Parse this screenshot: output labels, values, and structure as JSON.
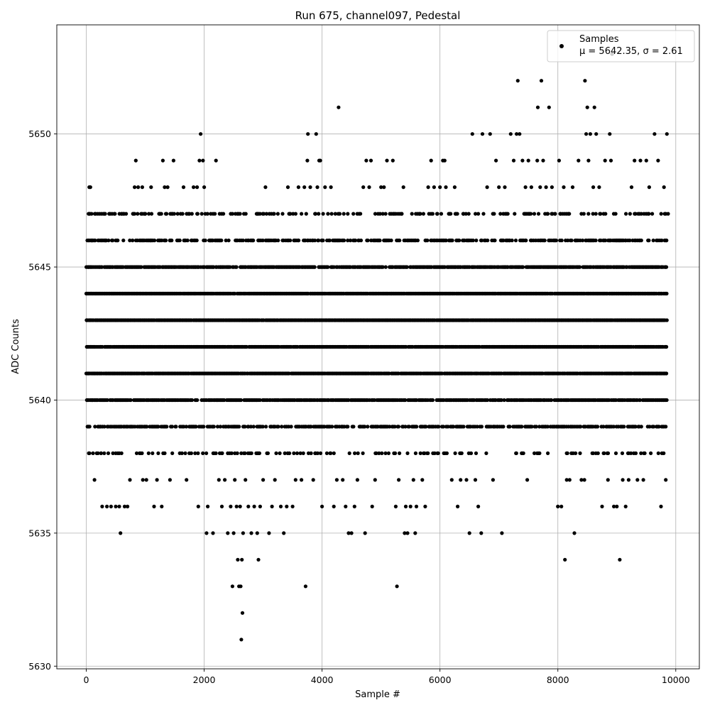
{
  "chart_data": {
    "type": "scatter",
    "title": "Run 675, channel097, Pedestal",
    "xlabel": "Sample #",
    "ylabel": "ADC Counts",
    "xlim": [
      -500,
      10400
    ],
    "ylim": [
      5629.9,
      5654.1
    ],
    "xticks": [
      0,
      2000,
      4000,
      6000,
      8000,
      10000
    ],
    "yticks": [
      5630,
      5635,
      5640,
      5645,
      5650
    ],
    "grid": true,
    "marker_color": "#000000",
    "legend": {
      "placement": "top-right",
      "entries": [
        {
          "label_line1": "Samples",
          "label_line2": "μ = 5642.35, σ = 2.61"
        }
      ]
    },
    "series": [
      {
        "name": "Samples",
        "n_samples": 10000,
        "sample_step": 1,
        "density_note": "levels 5639-5646 densely populated across all samples",
        "points": [
          [
            0,
            5644
          ],
          [
            10,
            5643
          ],
          [
            20,
            5642
          ],
          [
            30,
            5641
          ],
          [
            40,
            5645
          ],
          [
            50,
            5648
          ],
          [
            60,
            5647
          ],
          [
            80,
            5646
          ],
          [
            100,
            5640
          ],
          [
            140,
            5637
          ],
          [
            20,
            5640
          ],
          [
            30,
            5639
          ],
          [
            70,
            5648
          ],
          [
            90,
            5647
          ],
          [
            110,
            5646
          ],
          [
            250,
            5638
          ],
          [
            270,
            5636
          ],
          [
            320,
            5647
          ],
          [
            330,
            5646
          ],
          [
            350,
            5636
          ],
          [
            420,
            5636
          ],
          [
            500,
            5636
          ],
          [
            560,
            5636
          ],
          [
            580,
            5635
          ],
          [
            600,
            5647
          ],
          [
            650,
            5636
          ],
          [
            700,
            5636
          ],
          [
            740,
            5637
          ],
          [
            800,
            5647
          ],
          [
            820,
            5648
          ],
          [
            840,
            5649
          ],
          [
            880,
            5648
          ],
          [
            950,
            5648
          ],
          [
            960,
            5637
          ],
          [
            1000,
            5647
          ],
          [
            1020,
            5637
          ],
          [
            1100,
            5648
          ],
          [
            1150,
            5636
          ],
          [
            1200,
            5637
          ],
          [
            1250,
            5647
          ],
          [
            1280,
            5636
          ],
          [
            1300,
            5649
          ],
          [
            1330,
            5648
          ],
          [
            1380,
            5648
          ],
          [
            1420,
            5637
          ],
          [
            1450,
            5647
          ],
          [
            1480,
            5649
          ],
          [
            1550,
            5647
          ],
          [
            1600,
            5647
          ],
          [
            1650,
            5648
          ],
          [
            1700,
            5637
          ],
          [
            1750,
            5647
          ],
          [
            1820,
            5648
          ],
          [
            1880,
            5648
          ],
          [
            1900,
            5636
          ],
          [
            1920,
            5649
          ],
          [
            1940,
            5650
          ],
          [
            1960,
            5647
          ],
          [
            1980,
            5649
          ],
          [
            2000,
            5648
          ],
          [
            2020,
            5647
          ],
          [
            2040,
            5635
          ],
          [
            2060,
            5636
          ],
          [
            2100,
            5646
          ],
          [
            2150,
            5635
          ],
          [
            2200,
            5649
          ],
          [
            2250,
            5637
          ],
          [
            2300,
            5636
          ],
          [
            2350,
            5637
          ],
          [
            2400,
            5635
          ],
          [
            2450,
            5636
          ],
          [
            2480,
            5633
          ],
          [
            2500,
            5635
          ],
          [
            2520,
            5637
          ],
          [
            2550,
            5636
          ],
          [
            2570,
            5634
          ],
          [
            2590,
            5633
          ],
          [
            2610,
            5636
          ],
          [
            2620,
            5633
          ],
          [
            2630,
            5631
          ],
          [
            2640,
            5634
          ],
          [
            2650,
            5632
          ],
          [
            2660,
            5635
          ],
          [
            2700,
            5637
          ],
          [
            2750,
            5636
          ],
          [
            2800,
            5635
          ],
          [
            2850,
            5636
          ],
          [
            2900,
            5635
          ],
          [
            2920,
            5634
          ],
          [
            2950,
            5636
          ],
          [
            3000,
            5637
          ],
          [
            3040,
            5648
          ],
          [
            3100,
            5635
          ],
          [
            3150,
            5636
          ],
          [
            3200,
            5637
          ],
          [
            3300,
            5636
          ],
          [
            3350,
            5635
          ],
          [
            3400,
            5636
          ],
          [
            3420,
            5648
          ],
          [
            3450,
            5647
          ],
          [
            3500,
            5636
          ],
          [
            3550,
            5637
          ],
          [
            3600,
            5648
          ],
          [
            3650,
            5637
          ],
          [
            3700,
            5648
          ],
          [
            3720,
            5633
          ],
          [
            3750,
            5649
          ],
          [
            3760,
            5650
          ],
          [
            3800,
            5648
          ],
          [
            3850,
            5637
          ],
          [
            3880,
            5647
          ],
          [
            3900,
            5650
          ],
          [
            3920,
            5648
          ],
          [
            3950,
            5649
          ],
          [
            3970,
            5649
          ],
          [
            4000,
            5636
          ],
          [
            4050,
            5648
          ],
          [
            4100,
            5647
          ],
          [
            4150,
            5648
          ],
          [
            4200,
            5636
          ],
          [
            4250,
            5637
          ],
          [
            4280,
            5651
          ],
          [
            4300,
            5647
          ],
          [
            4350,
            5637
          ],
          [
            4400,
            5636
          ],
          [
            4450,
            5635
          ],
          [
            4500,
            5635
          ],
          [
            4550,
            5636
          ],
          [
            4600,
            5637
          ],
          [
            4650,
            5647
          ],
          [
            4700,
            5648
          ],
          [
            4730,
            5635
          ],
          [
            4750,
            5649
          ],
          [
            4800,
            5648
          ],
          [
            4830,
            5649
          ],
          [
            4850,
            5636
          ],
          [
            4900,
            5637
          ],
          [
            4950,
            5647
          ],
          [
            5000,
            5648
          ],
          [
            5050,
            5648
          ],
          [
            5100,
            5649
          ],
          [
            5150,
            5647
          ],
          [
            5200,
            5649
          ],
          [
            5250,
            5636
          ],
          [
            5270,
            5633
          ],
          [
            5300,
            5637
          ],
          [
            5350,
            5647
          ],
          [
            5380,
            5648
          ],
          [
            5400,
            5635
          ],
          [
            5420,
            5636
          ],
          [
            5450,
            5635
          ],
          [
            5500,
            5636
          ],
          [
            5550,
            5637
          ],
          [
            5580,
            5635
          ],
          [
            5600,
            5636
          ],
          [
            5650,
            5647
          ],
          [
            5700,
            5637
          ],
          [
            5750,
            5636
          ],
          [
            5800,
            5648
          ],
          [
            5850,
            5649
          ],
          [
            5900,
            5648
          ],
          [
            5950,
            5647
          ],
          [
            6000,
            5648
          ],
          [
            6050,
            5649
          ],
          [
            6080,
            5649
          ],
          [
            6100,
            5648
          ],
          [
            6150,
            5647
          ],
          [
            6200,
            5637
          ],
          [
            6250,
            5648
          ],
          [
            6300,
            5636
          ],
          [
            6350,
            5637
          ],
          [
            6400,
            5647
          ],
          [
            6450,
            5637
          ],
          [
            6500,
            5635
          ],
          [
            6550,
            5650
          ],
          [
            6600,
            5637
          ],
          [
            6650,
            5636
          ],
          [
            6700,
            5635
          ],
          [
            6720,
            5650
          ],
          [
            6800,
            5648
          ],
          [
            6850,
            5650
          ],
          [
            6900,
            5637
          ],
          [
            6950,
            5649
          ],
          [
            7000,
            5648
          ],
          [
            7050,
            5635
          ],
          [
            7100,
            5648
          ],
          [
            7150,
            5647
          ],
          [
            7200,
            5650
          ],
          [
            7250,
            5649
          ],
          [
            7300,
            5650
          ],
          [
            7320,
            5652
          ],
          [
            7350,
            5650
          ],
          [
            7400,
            5649
          ],
          [
            7450,
            5648
          ],
          [
            7480,
            5637
          ],
          [
            7500,
            5649
          ],
          [
            7550,
            5648
          ],
          [
            7600,
            5647
          ],
          [
            7650,
            5649
          ],
          [
            7660,
            5651
          ],
          [
            7700,
            5648
          ],
          [
            7720,
            5652
          ],
          [
            7750,
            5649
          ],
          [
            7800,
            5648
          ],
          [
            7830,
            5638
          ],
          [
            7850,
            5651
          ],
          [
            7900,
            5648
          ],
          [
            7950,
            5647
          ],
          [
            8000,
            5636
          ],
          [
            8020,
            5649
          ],
          [
            8060,
            5636
          ],
          [
            8100,
            5648
          ],
          [
            8120,
            5634
          ],
          [
            8150,
            5637
          ],
          [
            8200,
            5637
          ],
          [
            8250,
            5648
          ],
          [
            8280,
            5635
          ],
          [
            8300,
            5638
          ],
          [
            8350,
            5649
          ],
          [
            8400,
            5637
          ],
          [
            8450,
            5637
          ],
          [
            8460,
            5652
          ],
          [
            8480,
            5650
          ],
          [
            8500,
            5651
          ],
          [
            8520,
            5649
          ],
          [
            8550,
            5650
          ],
          [
            8600,
            5648
          ],
          [
            8620,
            5651
          ],
          [
            8650,
            5650
          ],
          [
            8700,
            5648
          ],
          [
            8750,
            5636
          ],
          [
            8800,
            5649
          ],
          [
            8850,
            5637
          ],
          [
            8880,
            5650
          ],
          [
            8900,
            5649
          ],
          [
            8920,
            5653
          ],
          [
            8950,
            5636
          ],
          [
            9000,
            5636
          ],
          [
            9050,
            5634
          ],
          [
            9100,
            5637
          ],
          [
            9150,
            5636
          ],
          [
            9200,
            5637
          ],
          [
            9250,
            5648
          ],
          [
            9300,
            5649
          ],
          [
            9350,
            5637
          ],
          [
            9400,
            5649
          ],
          [
            9450,
            5637
          ],
          [
            9500,
            5649
          ],
          [
            9550,
            5648
          ],
          [
            9600,
            5647
          ],
          [
            9640,
            5650
          ],
          [
            9700,
            5649
          ],
          [
            9750,
            5636
          ],
          [
            9800,
            5648
          ],
          [
            9830,
            5637
          ],
          [
            9850,
            5650
          ],
          [
            9870,
            5647
          ]
        ]
      }
    ]
  }
}
